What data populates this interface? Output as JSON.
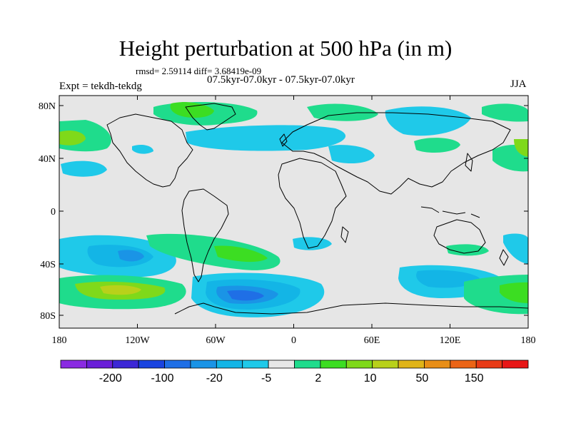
{
  "title": "Height perturbation at 500 hPa (in m)",
  "stats": "rmsd= 2.59114 diff= 3.68419e-09",
  "expt": "Expt = tekdh-tekdg",
  "period": "07.5kyr-07.0kyr - 07.5kyr-07.0kyr",
  "season": "JJA",
  "x_ticks": [
    "180",
    "120W",
    "60W",
    "0",
    "60E",
    "120E",
    "180"
  ],
  "y_ticks": [
    "80N",
    "40N",
    "0",
    "40S",
    "80S"
  ],
  "colorbar": {
    "labels": [
      "-200",
      "-100",
      "-20",
      "-5",
      "2",
      "10",
      "50",
      "150"
    ],
    "colors": [
      "#8a2be2",
      "#6a1fd8",
      "#3c27d6",
      "#1a44e0",
      "#1f6fe6",
      "#1a94e6",
      "#13b5e6",
      "#1fc9e9",
      "#e7e7e7",
      "#1fdc8c",
      "#3cdd22",
      "#7fd91a",
      "#b8d11a",
      "#e0b418",
      "#e88e16",
      "#eb6416",
      "#e83a16",
      "#e81616"
    ]
  },
  "map_background": "#e6e6e6",
  "coastline_color": "#000000"
}
